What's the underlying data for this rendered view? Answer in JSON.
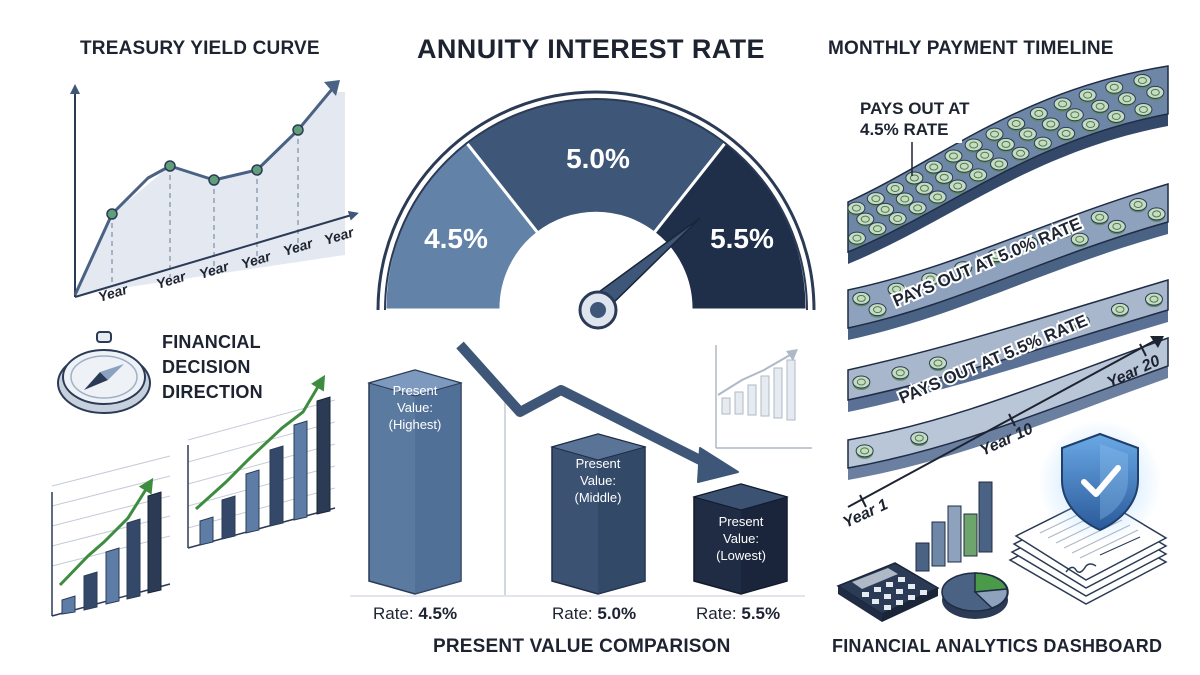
{
  "titles": {
    "yield_curve": "TREASURY YIELD CURVE",
    "annuity": "ANNUITY INTEREST RATE",
    "monthly": "MONTHLY PAYMENT TIMELINE",
    "decision": "FINANCIAL\nDECISION\nDIRECTION",
    "pv": "PRESENT VALUE COMPARISON",
    "dashboard": "FINANCIAL ANALYTICS DASHBOARD"
  },
  "yield_curve": {
    "x_labels": [
      "Year",
      "Year",
      "Year",
      "Year",
      "Year",
      "Year"
    ]
  },
  "gauge": {
    "segments": [
      "4.5%",
      "5.0%",
      "5.5%"
    ],
    "colors": [
      "#6282a8",
      "#3e5677",
      "#1f2f4a"
    ]
  },
  "pv": {
    "bars": [
      {
        "line1": "Present",
        "line2": "Value:",
        "line3": "(Highest)",
        "rate_label": "Rate:",
        "rate": "4.5%"
      },
      {
        "line1": "Present",
        "line2": "Value:",
        "line3": "(Middle)",
        "rate_label": "Rate:",
        "rate": "5.0%"
      },
      {
        "line1": "Present",
        "line2": "Value:",
        "line3": "(Lowest)",
        "rate_label": "Rate:",
        "rate": "5.5%"
      }
    ],
    "colors": [
      "#5a7aa0",
      "#3b5272",
      "#1f2c44"
    ]
  },
  "timeline": {
    "band1_line1": "PAYS OUT AT",
    "band1_line2": "4.5% RATE",
    "band2_label": "PAYS OUT AT 5.0% RATE",
    "band3_label": "PAYS OUT AT 5.5% RATE",
    "axis_labels": [
      "Year 1",
      "Year 10",
      "Year 20"
    ]
  },
  "colors": {
    "navy": "#1f2f4a",
    "slate": "#4a6283",
    "steel": "#7f98b8",
    "green": "#3d8c40",
    "coin": "#a9c9a4",
    "text": "#1d2330"
  },
  "icons": {
    "compass": "compass-icon",
    "shield": "shield-check-icon",
    "calculator": "calculator-icon",
    "pie": "pie-chart-icon",
    "documents": "documents-icon"
  }
}
